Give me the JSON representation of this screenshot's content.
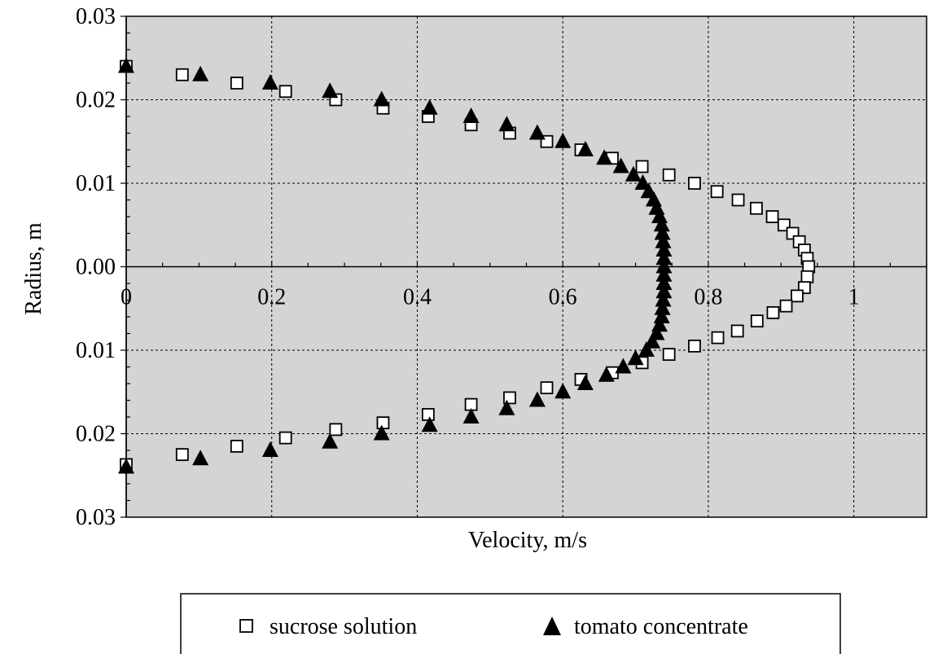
{
  "chart_data": {
    "type": "scatter",
    "title": "",
    "xlabel": "Velocity, m/s",
    "ylabel": "Radius, m",
    "xlim": [
      0,
      1.1
    ],
    "ylim": [
      -0.03,
      0.03
    ],
    "x_ticks": [
      0,
      0.2,
      0.4,
      0.6,
      0.8,
      1
    ],
    "x_tick_labels": [
      "0",
      "0.2",
      "0.4",
      "0.6",
      "0.8",
      "1"
    ],
    "y_ticks": [
      0.03,
      0.02,
      0.01,
      0.0,
      -0.01,
      -0.02,
      -0.03
    ],
    "y_tick_labels": [
      "0.03",
      "0.02",
      "0.01",
      "0.00",
      "0.01",
      "0.02",
      "0.03"
    ],
    "grid": true,
    "background_color": "#d4d4d4",
    "legend_position": "bottom",
    "series": [
      {
        "name": "sucrose solution",
        "marker": "open-square",
        "color": "#000000",
        "points": [
          [
            0.0,
            0.024
          ],
          [
            0.077,
            0.023
          ],
          [
            0.152,
            0.022
          ],
          [
            0.219,
            0.021
          ],
          [
            0.288,
            0.02
          ],
          [
            0.353,
            0.019
          ],
          [
            0.415,
            0.018
          ],
          [
            0.474,
            0.017
          ],
          [
            0.527,
            0.016
          ],
          [
            0.578,
            0.015
          ],
          [
            0.625,
            0.014
          ],
          [
            0.668,
            0.013
          ],
          [
            0.709,
            0.012
          ],
          [
            0.746,
            0.011
          ],
          [
            0.781,
            0.01
          ],
          [
            0.812,
            0.009
          ],
          [
            0.841,
            0.008
          ],
          [
            0.866,
            0.007
          ],
          [
            0.888,
            0.006
          ],
          [
            0.904,
            0.005
          ],
          [
            0.916,
            0.004
          ],
          [
            0.925,
            0.003
          ],
          [
            0.932,
            0.002
          ],
          [
            0.936,
            0.001
          ],
          [
            0.938,
            0.0
          ],
          [
            0.936,
            -0.0012
          ],
          [
            0.932,
            -0.0025
          ],
          [
            0.922,
            -0.0035
          ],
          [
            0.907,
            -0.0047
          ],
          [
            0.889,
            -0.0055
          ],
          [
            0.867,
            -0.0065
          ],
          [
            0.84,
            -0.0077
          ],
          [
            0.813,
            -0.0085
          ],
          [
            0.781,
            -0.0095
          ],
          [
            0.746,
            -0.0105
          ],
          [
            0.709,
            -0.0115
          ],
          [
            0.668,
            -0.0127
          ],
          [
            0.625,
            -0.0135
          ],
          [
            0.578,
            -0.0145
          ],
          [
            0.527,
            -0.0157
          ],
          [
            0.474,
            -0.0165
          ],
          [
            0.415,
            -0.0177
          ],
          [
            0.353,
            -0.0187
          ],
          [
            0.288,
            -0.0195
          ],
          [
            0.219,
            -0.0205
          ],
          [
            0.152,
            -0.0215
          ],
          [
            0.077,
            -0.0225
          ],
          [
            0.0,
            -0.0237
          ]
        ]
      },
      {
        "name": "tomato concentrate",
        "marker": "filled-triangle",
        "color": "#000000",
        "points": [
          [
            0.0,
            0.024
          ],
          [
            0.102,
            0.023
          ],
          [
            0.198,
            0.022
          ],
          [
            0.28,
            0.021
          ],
          [
            0.351,
            0.02
          ],
          [
            0.417,
            0.019
          ],
          [
            0.474,
            0.018
          ],
          [
            0.523,
            0.017
          ],
          [
            0.565,
            0.016
          ],
          [
            0.6,
            0.015
          ],
          [
            0.631,
            0.014
          ],
          [
            0.657,
            0.013
          ],
          [
            0.68,
            0.012
          ],
          [
            0.697,
            0.011
          ],
          [
            0.71,
            0.01
          ],
          [
            0.718,
            0.009
          ],
          [
            0.725,
            0.008
          ],
          [
            0.729,
            0.007
          ],
          [
            0.733,
            0.006
          ],
          [
            0.736,
            0.005
          ],
          [
            0.737,
            0.004
          ],
          [
            0.738,
            0.003
          ],
          [
            0.739,
            0.002
          ],
          [
            0.739,
            0.001
          ],
          [
            0.739,
            0.0
          ],
          [
            0.739,
            -0.001
          ],
          [
            0.739,
            -0.002
          ],
          [
            0.739,
            -0.003
          ],
          [
            0.738,
            -0.004
          ],
          [
            0.737,
            -0.005
          ],
          [
            0.736,
            -0.006
          ],
          [
            0.733,
            -0.007
          ],
          [
            0.729,
            -0.008
          ],
          [
            0.723,
            -0.009
          ],
          [
            0.715,
            -0.01
          ],
          [
            0.7,
            -0.011
          ],
          [
            0.683,
            -0.012
          ],
          [
            0.66,
            -0.013
          ],
          [
            0.631,
            -0.014
          ],
          [
            0.6,
            -0.015
          ],
          [
            0.565,
            -0.016
          ],
          [
            0.523,
            -0.017
          ],
          [
            0.474,
            -0.018
          ],
          [
            0.417,
            -0.019
          ],
          [
            0.351,
            -0.02
          ],
          [
            0.28,
            -0.021
          ],
          [
            0.198,
            -0.022
          ],
          [
            0.102,
            -0.023
          ],
          [
            0.0,
            -0.024
          ]
        ]
      }
    ]
  }
}
